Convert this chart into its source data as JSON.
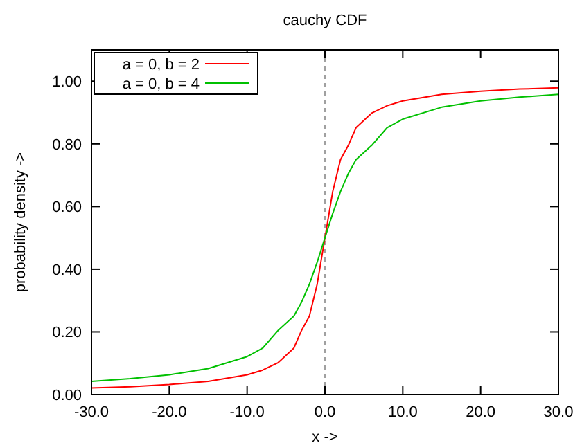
{
  "chart_data": {
    "type": "line",
    "title": "cauchy CDF",
    "xlabel": "x ->",
    "ylabel": "probability density ->",
    "x": [
      -30,
      -25,
      -20,
      -15,
      -10,
      -8,
      -6,
      -4,
      -3,
      -2,
      -1,
      0,
      1,
      2,
      3,
      4,
      6,
      8,
      10,
      15,
      20,
      25,
      30
    ],
    "series": [
      {
        "name": "a = 0, b = 2",
        "color": "#ff0000",
        "values": [
          0.021,
          0.025,
          0.032,
          0.042,
          0.063,
          0.078,
          0.102,
          0.148,
          0.205,
          0.25,
          0.352,
          0.5,
          0.648,
          0.75,
          0.795,
          0.852,
          0.898,
          0.922,
          0.937,
          0.958,
          0.968,
          0.975,
          0.979
        ]
      },
      {
        "name": "a = 0, b = 4",
        "color": "#00c000",
        "values": [
          0.042,
          0.051,
          0.063,
          0.083,
          0.121,
          0.148,
          0.205,
          0.25,
          0.295,
          0.352,
          0.422,
          0.5,
          0.578,
          0.648,
          0.705,
          0.75,
          0.795,
          0.852,
          0.879,
          0.917,
          0.937,
          0.949,
          0.958
        ]
      }
    ],
    "xlim": [
      -30,
      30
    ],
    "ylim": [
      0,
      1.1
    ],
    "xticks": [
      {
        "value": -30,
        "label": "-30.0"
      },
      {
        "value": -20,
        "label": "-20.0"
      },
      {
        "value": -10,
        "label": "-10.0"
      },
      {
        "value": 0,
        "label": "0.0"
      },
      {
        "value": 10,
        "label": "10.0"
      },
      {
        "value": 20,
        "label": "20.0"
      },
      {
        "value": 30,
        "label": "30.0"
      }
    ],
    "yticks": [
      {
        "value": 0,
        "label": "0.00"
      },
      {
        "value": 0.2,
        "label": "0.20"
      },
      {
        "value": 0.4,
        "label": "0.40"
      },
      {
        "value": 0.6,
        "label": "0.60"
      },
      {
        "value": 0.8,
        "label": "0.80"
      },
      {
        "value": 1,
        "label": "1.00"
      }
    ],
    "ref_lines": [
      {
        "axis": "x",
        "value": 0,
        "color": "#a0a0a0",
        "line_style": "dashed"
      }
    ],
    "legend": "top left",
    "grid": false,
    "marker": "none",
    "line_style": "solid"
  }
}
